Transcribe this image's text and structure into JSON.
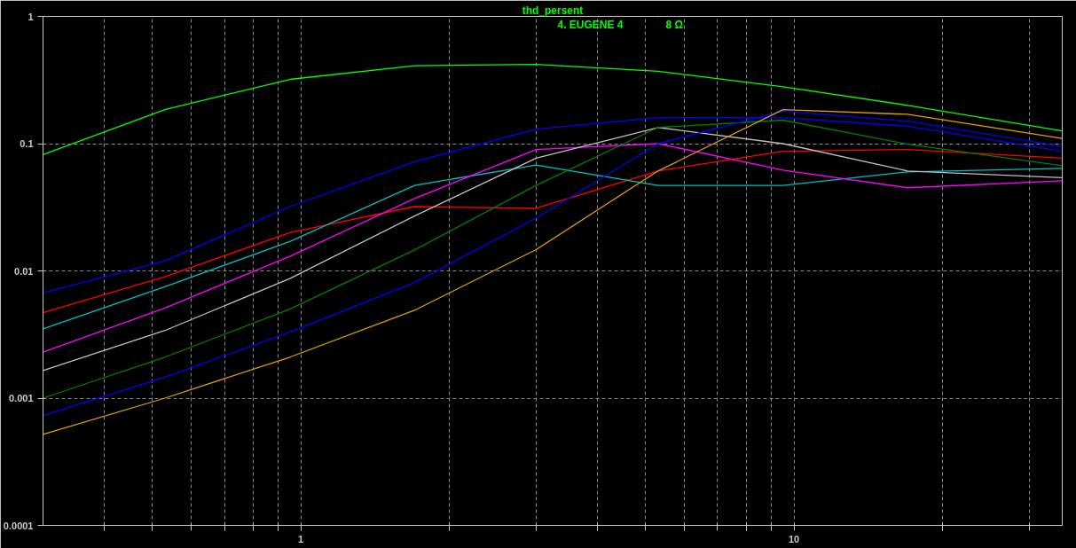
{
  "chart_data": {
    "type": "line",
    "title": "thd_persent",
    "annotations": [
      "4. EUGENE 4",
      "8 Ω"
    ],
    "log": "xy",
    "grid": true,
    "line_style": "solid",
    "marker": "none",
    "x": [
      0.3,
      0.53,
      0.95,
      1.7,
      3,
      5.3,
      9.5,
      17,
      35
    ],
    "xlim": [
      0.3,
      35
    ],
    "ylim": [
      0.0001,
      1
    ],
    "xticks": [
      {
        "value": 0.4,
        "label": null
      },
      {
        "value": 0.5,
        "label": null
      },
      {
        "value": 0.6,
        "label": null
      },
      {
        "value": 0.7,
        "label": null
      },
      {
        "value": 0.8,
        "label": null
      },
      {
        "value": 0.9,
        "label": null
      },
      1,
      {
        "value": 2,
        "label": null
      },
      {
        "value": 3,
        "label": null
      },
      {
        "value": 4,
        "label": null
      },
      {
        "value": 5,
        "label": null
      },
      {
        "value": 6,
        "label": null
      },
      {
        "value": 7,
        "label": null
      },
      {
        "value": 8,
        "label": null
      },
      {
        "value": 9,
        "label": null
      },
      10,
      {
        "value": 20,
        "label": null
      },
      {
        "value": 30,
        "label": null
      }
    ],
    "yticks": [
      0.0001,
      0.001,
      0.01,
      0.1,
      1
    ],
    "series": [
      {
        "color": "#00ff00",
        "values": [
          0.082,
          0.185,
          0.32,
          0.41,
          0.42,
          0.37,
          0.28,
          0.2,
          0.126
        ]
      },
      {
        "color": "#0000ff",
        "values": [
          0.0067,
          0.012,
          0.032,
          0.072,
          0.13,
          0.16,
          0.16,
          0.137,
          0.087
        ]
      },
      {
        "color": "#ff0000",
        "values": [
          0.0047,
          0.009,
          0.02,
          0.032,
          0.031,
          0.061,
          0.087,
          0.09,
          0.077
        ]
      },
      {
        "color": "#00c0c0",
        "values": [
          0.0035,
          0.0075,
          0.017,
          0.047,
          0.068,
          0.047,
          0.047,
          0.06,
          0.064
        ]
      },
      {
        "color": "#ff00ff",
        "values": [
          0.0023,
          0.0051,
          0.013,
          0.037,
          0.09,
          0.1,
          0.062,
          0.045,
          0.051
        ]
      },
      {
        "color": "#c0c0c0",
        "values": [
          0.00165,
          0.0034,
          0.0087,
          0.027,
          0.077,
          0.134,
          0.1,
          0.061,
          0.054
        ]
      },
      {
        "color": "#008000",
        "values": [
          0.001,
          0.0021,
          0.005,
          0.0146,
          0.047,
          0.134,
          0.153,
          0.099,
          0.067
        ]
      },
      {
        "color": "#0000ff",
        "values": [
          0.00073,
          0.00146,
          0.0033,
          0.0081,
          0.026,
          0.1,
          0.18,
          0.15,
          0.095
        ]
      },
      {
        "color": "#e0a000",
        "values": [
          0.00052,
          0.001,
          0.0021,
          0.0049,
          0.0147,
          0.061,
          0.185,
          0.17,
          0.11
        ]
      }
    ]
  }
}
